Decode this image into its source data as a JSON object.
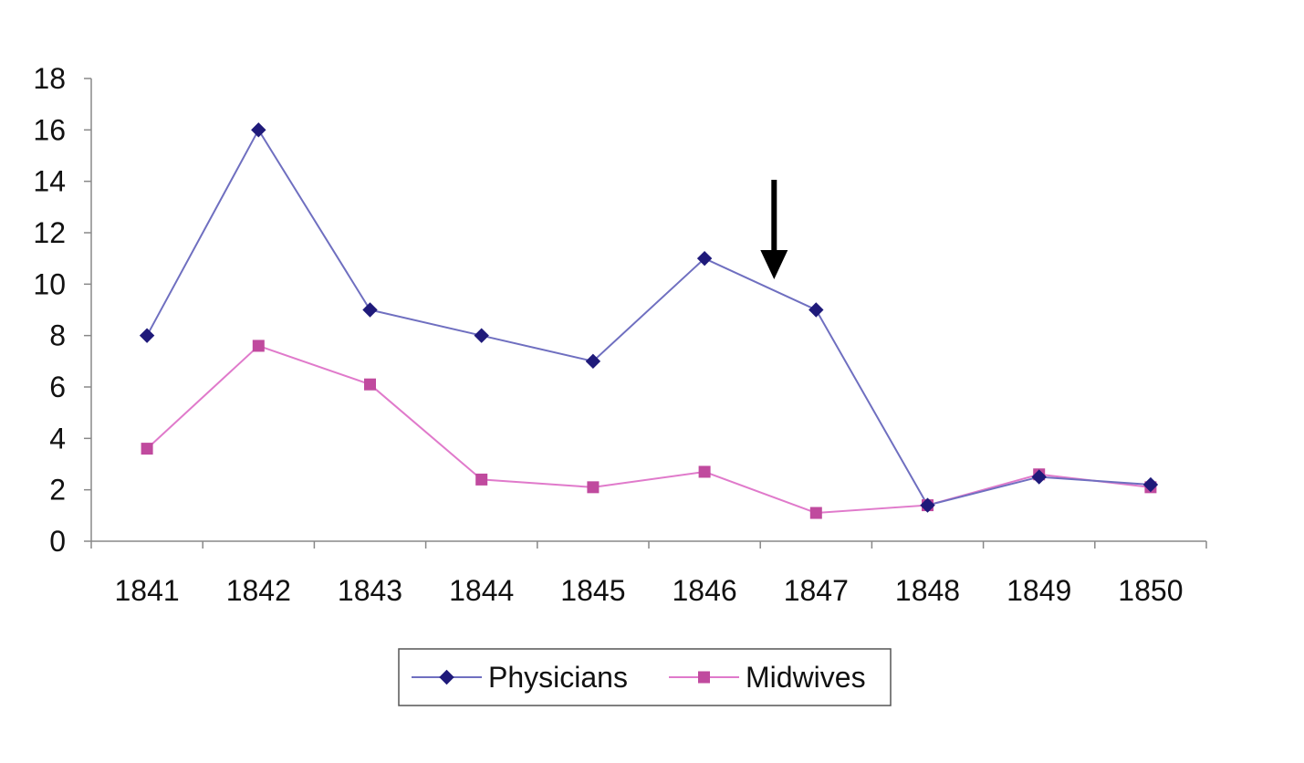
{
  "chart_data": {
    "type": "line",
    "title": "",
    "xlabel": "",
    "ylabel": "",
    "categories": [
      "1841",
      "1842",
      "1843",
      "1844",
      "1845",
      "1846",
      "1847",
      "1848",
      "1849",
      "1850"
    ],
    "ylim": [
      0,
      18
    ],
    "yticks": [
      "0",
      "2",
      "4",
      "6",
      "8",
      "10",
      "12",
      "14",
      "16",
      "18"
    ],
    "grid": false,
    "legend_position": "bottom",
    "series": [
      {
        "name": "Physicians",
        "marker": "diamond",
        "color": "#1f1a7a",
        "line_color": "#6f6fc0",
        "values": [
          8,
          16,
          9,
          8,
          7,
          11,
          9,
          1.4,
          2.5,
          2.2
        ]
      },
      {
        "name": "Midwives",
        "marker": "square",
        "color": "#c04a9e",
        "line_color": "#e07acb",
        "values": [
          3.6,
          7.6,
          6.1,
          2.4,
          2.1,
          2.7,
          1.1,
          1.4,
          2.6,
          2.1
        ]
      }
    ],
    "annotations": [
      {
        "type": "arrow",
        "direction": "down",
        "points_to": "1847"
      }
    ]
  }
}
